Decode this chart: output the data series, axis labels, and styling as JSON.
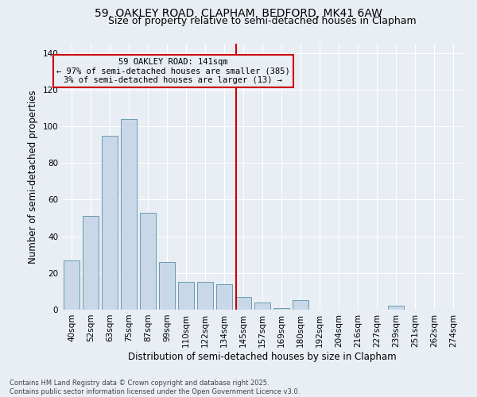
{
  "title1": "59, OAKLEY ROAD, CLAPHAM, BEDFORD, MK41 6AW",
  "title2": "Size of property relative to semi-detached houses in Clapham",
  "xlabel": "Distribution of semi-detached houses by size in Clapham",
  "ylabel": "Number of semi-detached properties",
  "bar_labels": [
    "40sqm",
    "52sqm",
    "63sqm",
    "75sqm",
    "87sqm",
    "99sqm",
    "110sqm",
    "122sqm",
    "134sqm",
    "145sqm",
    "157sqm",
    "169sqm",
    "180sqm",
    "192sqm",
    "204sqm",
    "216sqm",
    "227sqm",
    "239sqm",
    "251sqm",
    "262sqm",
    "274sqm"
  ],
  "bar_values": [
    27,
    51,
    95,
    104,
    53,
    26,
    15,
    15,
    14,
    7,
    4,
    1,
    5,
    0,
    0,
    0,
    0,
    2,
    0,
    0,
    0
  ],
  "bar_color": "#c8d8e8",
  "bar_edge_color": "#6a9ab0",
  "property_line_x": 9,
  "annotation_text": "59 OAKLEY ROAD: 141sqm\n← 97% of semi-detached houses are smaller (385)\n3% of semi-detached houses are larger (13) →",
  "annotation_box_color": "#cc0000",
  "ylim": [
    0,
    145
  ],
  "yticks": [
    0,
    20,
    40,
    60,
    80,
    100,
    120,
    140
  ],
  "background_color": "#e8eef4",
  "footer_text": "Contains HM Land Registry data © Crown copyright and database right 2025.\nContains public sector information licensed under the Open Government Licence v3.0.",
  "grid_color": "#ffffff",
  "title_fontsize": 10,
  "subtitle_fontsize": 9,
  "axis_fontsize": 8.5,
  "tick_fontsize": 7.5,
  "ann_fontsize": 7.5
}
